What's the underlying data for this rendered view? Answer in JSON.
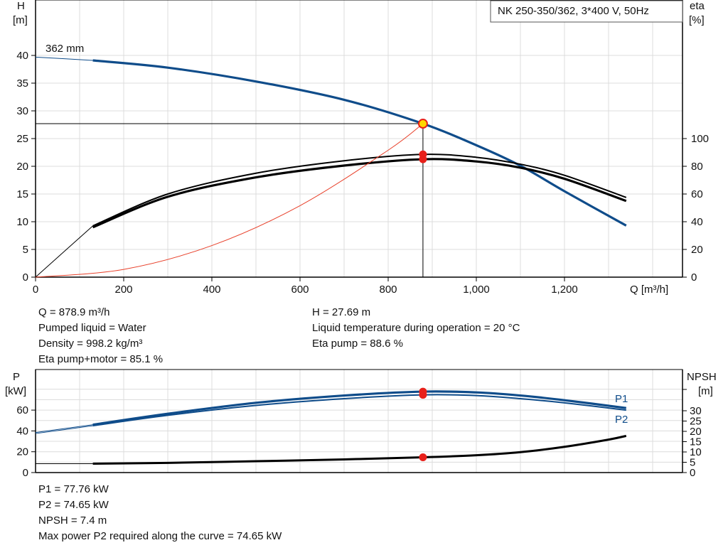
{
  "top_chart": {
    "title_box": "NK 250-350/362, 3*400 V, 50Hz",
    "curve_label": "362 mm",
    "y_left_label": [
      "H",
      "[m]"
    ],
    "y_right_label": [
      "eta",
      "[%]"
    ],
    "x_label": "Q [m³/h]",
    "x_ticks": [
      "0",
      "200",
      "400",
      "600",
      "800",
      "1,000",
      "1,200"
    ],
    "y_left_ticks": [
      "0",
      "5",
      "10",
      "15",
      "20",
      "25",
      "30",
      "35",
      "40"
    ],
    "y_right_ticks": [
      "0",
      "20",
      "40",
      "60",
      "80",
      "100"
    ]
  },
  "top_info": {
    "left": [
      "Q = 878.9 m³/h",
      "Pumped liquid = Water",
      "Density = 998.2 kg/m³",
      "Eta pump+motor = 85.1 %"
    ],
    "right": [
      "H = 27.69 m",
      "Liquid temperature during operation = 20 °C",
      "Eta pump = 88.6 %"
    ]
  },
  "bottom_chart": {
    "y_left_label": [
      "P",
      "[kW]"
    ],
    "y_right_label": [
      "NPSH",
      "[m]"
    ],
    "y_left_ticks": [
      "0",
      "20",
      "40",
      "60"
    ],
    "y_right_ticks": [
      "0",
      "5",
      "10",
      "15",
      "20",
      "25",
      "30"
    ],
    "series_labels": [
      "P1",
      "P2"
    ]
  },
  "bottom_info": [
    "P1 = 77.76 kW",
    "P2 = 74.65 kW",
    "NPSH = 7.4 m",
    "Max power P2 required along the curve = 74.65 kW"
  ],
  "colors": {
    "head": "#0f4c8a",
    "eta": "#000000",
    "system": "#e8402a",
    "duty": "#e8201a",
    "duty_fill": "#ffd800"
  },
  "chart_data": [
    {
      "type": "line",
      "x_range": [
        0,
        1400
      ],
      "y_left_range": [
        0,
        40
      ],
      "y_right_range": [
        0,
        100
      ],
      "duty_point": {
        "Q": 878.9,
        "H": 27.69
      },
      "series": [
        {
          "name": "362 mm",
          "axis": "H",
          "x": [
            0,
            130,
            300,
            500,
            700,
            878.9,
            1000,
            1100,
            1200,
            1340
          ],
          "y": [
            39.7,
            39.1,
            37.8,
            35.3,
            32.0,
            27.69,
            23.8,
            20.1,
            15.5,
            9.3
          ]
        },
        {
          "axis": "eta",
          "x": [
            0,
            130,
            300,
            500,
            700,
            878.9,
            1000,
            1100,
            1200,
            1340
          ],
          "y": [
            0,
            37,
            60,
            75,
            84,
            88.6,
            86.5,
            81.5,
            73.5,
            57.5
          ]
        },
        {
          "axis": "eta",
          "x": [
            130,
            300,
            500,
            700,
            878.9,
            1000,
            1100,
            1200,
            1340
          ],
          "y": [
            36,
            58,
            72,
            80.5,
            85.1,
            83.5,
            79,
            71,
            55
          ]
        },
        {
          "axis": "H",
          "x": [
            0,
            200,
            400,
            600,
            800,
            878.9
          ],
          "y": [
            0,
            1.4,
            5.7,
            12.9,
            22.9,
            27.69
          ]
        }
      ]
    },
    {
      "type": "line",
      "x_range": [
        0,
        1400
      ],
      "y_left_range": [
        0,
        80
      ],
      "series": [
        {
          "name": "P1",
          "x": [
            0,
            130,
            300,
            500,
            700,
            878.9,
            1000,
            1100,
            1200,
            1340
          ],
          "y": [
            38.5,
            46,
            56.5,
            67,
            74,
            77.76,
            77,
            74,
            69.5,
            62
          ]
        },
        {
          "name": "P2",
          "x": [
            0,
            130,
            300,
            500,
            700,
            878.9,
            1000,
            1100,
            1200,
            1340
          ],
          "y": [
            37.5,
            45,
            55,
            64.5,
            71,
            74.65,
            74,
            71,
            67,
            60
          ]
        },
        {
          "name": "NPSH",
          "x": [
            0,
            130,
            300,
            500,
            700,
            878.9,
            1000,
            1100,
            1200,
            1300,
            1340
          ],
          "y": [
            4.3,
            4.3,
            4.7,
            5.5,
            6.4,
            7.4,
            8.4,
            9.9,
            12.5,
            16,
            17.8
          ]
        }
      ]
    }
  ]
}
